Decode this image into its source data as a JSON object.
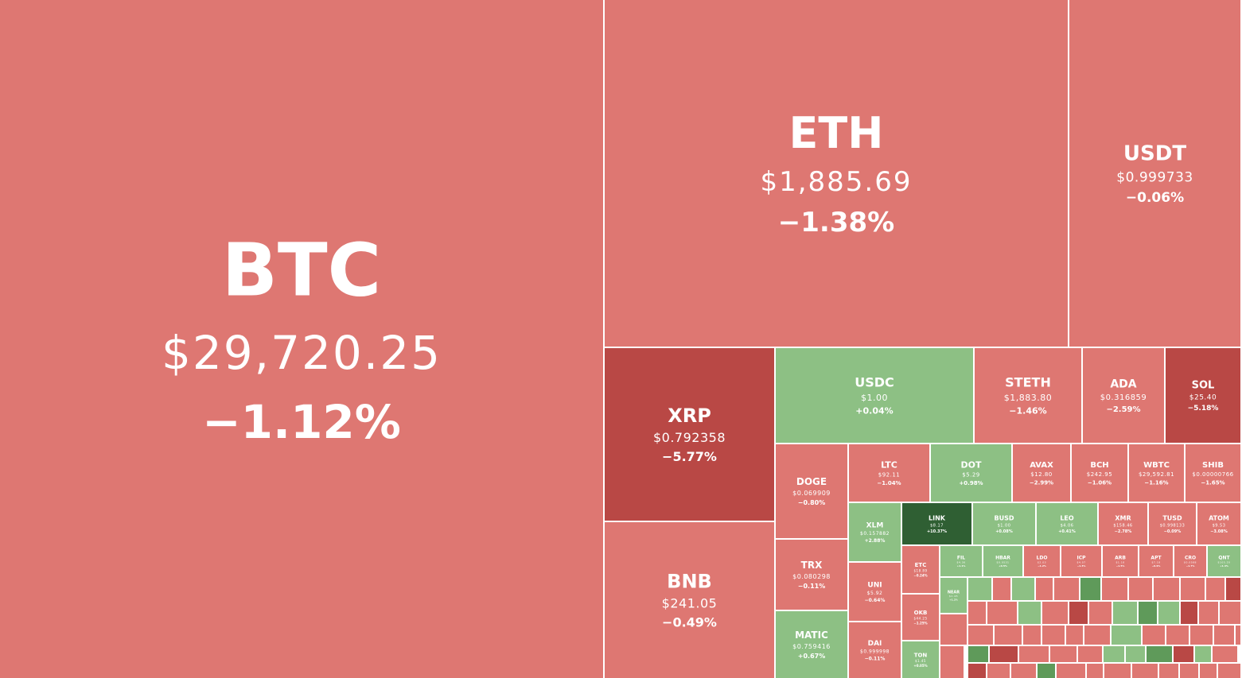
{
  "chart_data": {
    "type": "treemap",
    "title": "",
    "metric": "market cap",
    "colors": {
      "down_light": "#de7772",
      "down_strong": "#b94845",
      "up_light": "#8dc084",
      "up_mid": "#5f9a5a",
      "up_strong": "#2f5f33"
    },
    "cells": [
      {
        "symbol": "BTC",
        "price": "$29,720.25",
        "change": "−1.12%",
        "pct": -1.12
      },
      {
        "symbol": "ETH",
        "price": "$1,885.69",
        "change": "−1.38%",
        "pct": -1.38
      },
      {
        "symbol": "USDT",
        "price": "$0.999733",
        "change": "−0.06%",
        "pct": -0.06
      },
      {
        "symbol": "XRP",
        "price": "$0.792358",
        "change": "−5.77%",
        "pct": -5.77
      },
      {
        "symbol": "BNB",
        "price": "$241.05",
        "change": "−0.49%",
        "pct": -0.49
      },
      {
        "symbol": "USDC",
        "price": "$1.00",
        "change": "+0.04%",
        "pct": 0.04
      },
      {
        "symbol": "STETH",
        "price": "$1,883.80",
        "change": "−1.46%",
        "pct": -1.46
      },
      {
        "symbol": "ADA",
        "price": "$0.316859",
        "change": "−2.59%",
        "pct": -2.59
      },
      {
        "symbol": "SOL",
        "price": "$25.40",
        "change": "−5.18%",
        "pct": -5.18
      },
      {
        "symbol": "DOGE",
        "price": "$0.069909",
        "change": "−0.80%",
        "pct": -0.8
      },
      {
        "symbol": "TRX",
        "price": "$0.080298",
        "change": "−0.11%",
        "pct": -0.11
      },
      {
        "symbol": "MATIC",
        "price": "$0.759416",
        "change": "+0.67%",
        "pct": 0.67
      },
      {
        "symbol": "LTC",
        "price": "$92.11",
        "change": "−1.04%",
        "pct": -1.04
      },
      {
        "symbol": "DOT",
        "price": "$5.29",
        "change": "+0.98%",
        "pct": 0.98
      },
      {
        "symbol": "AVAX",
        "price": "$12.80",
        "change": "−2.99%",
        "pct": -2.99
      },
      {
        "symbol": "BCH",
        "price": "$242.95",
        "change": "−1.06%",
        "pct": -1.06
      },
      {
        "symbol": "WBTC",
        "price": "$29,592.81",
        "change": "−1.16%",
        "pct": -1.16
      },
      {
        "symbol": "SHIB",
        "price": "$0.00000766",
        "change": "−1.65%",
        "pct": -1.65
      },
      {
        "symbol": "XLM",
        "price": "$0.157882",
        "change": "+2.88%",
        "pct": 2.88
      },
      {
        "symbol": "LINK",
        "price": "$8.17",
        "change": "+10.37%",
        "pct": 10.37
      },
      {
        "symbol": "BUSD",
        "price": "$1.00",
        "change": "+0.08%",
        "pct": 0.08
      },
      {
        "symbol": "LEO",
        "price": "$4.06",
        "change": "+0.41%",
        "pct": 0.41
      },
      {
        "symbol": "XMR",
        "price": "$158.46",
        "change": "−2.78%",
        "pct": -2.78
      },
      {
        "symbol": "TUSD",
        "price": "$0.998133",
        "change": "−0.09%",
        "pct": -0.09
      },
      {
        "symbol": "ATOM",
        "price": "$9.53",
        "change": "−3.08%",
        "pct": -3.08
      },
      {
        "symbol": "UNI",
        "price": "$5.92",
        "change": "−0.64%",
        "pct": -0.64
      },
      {
        "symbol": "DAI",
        "price": "$0.999998",
        "change": "−0.11%",
        "pct": -0.11
      },
      {
        "symbol": "ETC",
        "price": "$18.89",
        "change": "−0.24%",
        "pct": -0.24
      },
      {
        "symbol": "OKB",
        "price": "$44.25",
        "change": "−1.25%",
        "pct": -1.25
      },
      {
        "symbol": "TON",
        "price": "$1.45",
        "change": "+0.05%",
        "pct": 0.05
      },
      {
        "symbol": "FIL",
        "price": "$4.36",
        "change": "+1.1%",
        "pct": 1.1
      },
      {
        "symbol": "HBAR",
        "price": "$0.0531",
        "change": "+0.5%",
        "pct": 0.5
      },
      {
        "symbol": "LDO",
        "price": "$2.03",
        "change": "−1.2%",
        "pct": -1.2
      },
      {
        "symbol": "ICP",
        "price": "$4.07",
        "change": "−1.3%",
        "pct": -1.3
      },
      {
        "symbol": "ARB",
        "price": "$1.18",
        "change": "−1.5%",
        "pct": -1.5
      },
      {
        "symbol": "APT",
        "price": "$7.18",
        "change": "−0.9%",
        "pct": -0.9
      },
      {
        "symbol": "CRO",
        "price": "$0.0588",
        "change": "−1.7%",
        "pct": -1.7
      },
      {
        "symbol": "QNT",
        "price": "$105.20",
        "change": "+1.4%",
        "pct": 1.4
      },
      {
        "symbol": "NEAR",
        "price": "$1.45",
        "change": "+1.2%",
        "pct": 1.2
      }
    ],
    "minor_tiles_note": "many smaller unlabeled tiles fill the lower-right corner"
  }
}
